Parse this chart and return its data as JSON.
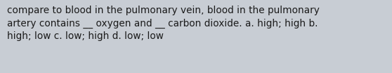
{
  "text_lines": [
    "compare to blood in the pulmonary vein, blood in the pulmonary",
    "artery contains __ oxygen and __ carbon dioxide. a. high; high b.",
    "high; low c. low; high d. low; low"
  ],
  "background_color": "#c8cdd4",
  "text_color": "#1a1a1a",
  "font_size": 9.8,
  "fig_width": 5.58,
  "fig_height": 1.05,
  "dpi": 100
}
